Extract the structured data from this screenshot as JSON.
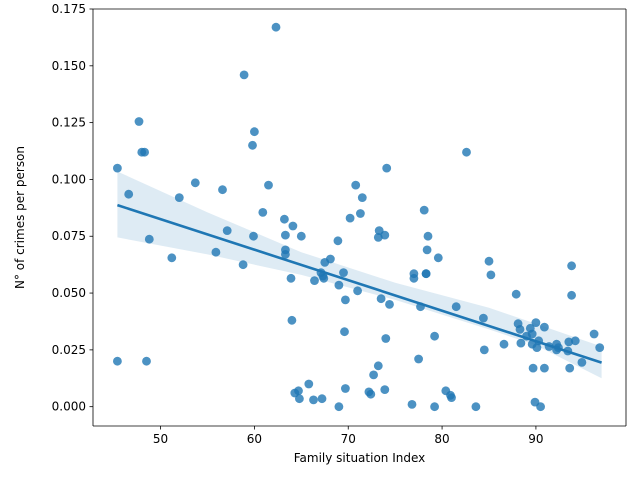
{
  "chart_data": {
    "type": "scatter",
    "xlabel": "Family situation Index",
    "ylabel": "N° of crimes per person",
    "xlim": [
      42.8,
      99.6
    ],
    "ylim": [
      -0.0085,
      0.175
    ],
    "xticks": [
      50,
      60,
      70,
      80,
      90
    ],
    "xtick_labels": [
      "50",
      "60",
      "70",
      "80",
      "90"
    ],
    "yticks": [
      0.0,
      0.025,
      0.05,
      0.075,
      0.1,
      0.125,
      0.15,
      0.175
    ],
    "ytick_labels": [
      "0.000",
      "0.025",
      "0.050",
      "0.075",
      "0.100",
      "0.125",
      "0.150",
      "0.175"
    ],
    "grid": false,
    "colors": {
      "points": "#1f77b4",
      "line": "#1f77b4",
      "band": "#1f77b4"
    },
    "regression": {
      "x": [
        45.4,
        97.0
      ],
      "y": [
        0.0887,
        0.0194
      ],
      "ci_band": {
        "x": [
          45.4,
          55,
          65,
          75,
          85,
          90,
          97.0
        ],
        "upper": [
          0.1035,
          0.0855,
          0.068,
          0.0545,
          0.0435,
          0.0365,
          0.0265
        ],
        "lower": [
          0.0745,
          0.067,
          0.058,
          0.047,
          0.034,
          0.027,
          0.0125
        ]
      }
    },
    "series": [
      {
        "x": [
          45.4,
          46.6,
          47.7,
          48.0,
          48.3,
          48.8,
          51.2,
          52.0,
          53.7,
          55.9,
          56.6,
          57.1,
          58.8,
          58.9,
          59.8,
          60.0,
          59.9,
          60.9,
          61.5,
          62.3,
          63.2,
          63.3,
          63.3,
          63.3,
          63.9,
          64.1,
          64.0,
          65.0,
          66.4,
          67.1,
          67.3,
          67.4,
          67.5,
          68.1,
          68.9,
          69.0,
          69.5,
          69.6,
          69.7,
          70.2,
          70.8,
          71.0,
          71.3,
          71.5,
          73.2,
          73.3,
          73.5,
          73.9,
          74.0,
          74.1,
          74.4,
          77.0,
          77.0,
          77.7,
          78.1,
          78.3,
          78.3,
          78.4,
          78.5,
          79.2,
          79.6,
          81.5,
          82.6,
          84.4,
          84.5,
          85.0,
          85.2,
          86.6,
          87.9,
          88.1,
          88.3,
          88.4,
          89.0,
          89.4,
          89.6,
          89.6,
          90.0,
          90.1,
          90.3,
          90.9,
          91.4,
          92.2,
          92.2,
          92.4,
          93.4,
          93.5,
          93.6,
          93.8,
          93.8,
          94.2,
          94.9,
          96.2,
          96.8,
          45.4,
          48.5,
          64.3,
          64.7,
          64.8,
          65.8,
          66.3,
          67.2,
          69.0,
          69.7,
          72.2,
          72.4,
          72.7,
          73.2,
          73.9,
          76.8,
          77.5,
          79.2,
          80.4,
          80.9,
          81.0,
          83.6,
          89.7,
          89.9,
          90.5,
          90.9
        ],
        "y": [
          0.105,
          0.0935,
          0.1255,
          0.112,
          0.112,
          0.0737,
          0.0655,
          0.092,
          0.0985,
          0.068,
          0.0955,
          0.0775,
          0.0625,
          0.146,
          0.115,
          0.121,
          0.075,
          0.0855,
          0.0975,
          0.167,
          0.0825,
          0.0755,
          0.069,
          0.067,
          0.0565,
          0.0795,
          0.038,
          0.075,
          0.0555,
          0.059,
          0.0575,
          0.0565,
          0.0635,
          0.065,
          0.073,
          0.0535,
          0.059,
          0.033,
          0.047,
          0.083,
          0.0975,
          0.051,
          0.085,
          0.092,
          0.0745,
          0.0775,
          0.0475,
          0.0755,
          0.03,
          0.105,
          0.045,
          0.0565,
          0.0585,
          0.044,
          0.0865,
          0.0585,
          0.0585,
          0.069,
          0.075,
          0.031,
          0.0655,
          0.044,
          0.112,
          0.039,
          0.025,
          0.064,
          0.058,
          0.0275,
          0.0495,
          0.0365,
          0.034,
          0.028,
          0.031,
          0.0345,
          0.0275,
          0.032,
          0.037,
          0.026,
          0.029,
          0.035,
          0.0265,
          0.0275,
          0.025,
          0.026,
          0.0245,
          0.0285,
          0.017,
          0.062,
          0.049,
          0.029,
          0.0195,
          0.032,
          0.026,
          0.02,
          0.02,
          0.006,
          0.007,
          0.0035,
          0.01,
          0.003,
          0.0035,
          0.0,
          0.008,
          0.0065,
          0.0055,
          0.014,
          0.018,
          0.0075,
          0.001,
          0.021,
          0.0,
          0.007,
          0.005,
          0.004,
          0.0,
          0.017,
          0.002,
          0.0,
          0.017
        ]
      }
    ]
  }
}
